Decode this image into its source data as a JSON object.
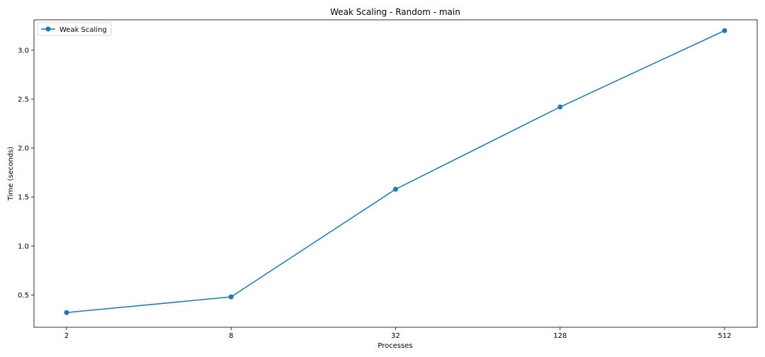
{
  "chart_data": {
    "type": "line",
    "title": "Weak Scaling - Random - main",
    "xlabel": "Processes",
    "ylabel": "Time (seconds)",
    "x_scale": "log2",
    "categories": [
      "2",
      "8",
      "32",
      "128",
      "512"
    ],
    "ylim": [
      0.17,
      3.31
    ],
    "yticks": [
      0.5,
      1.0,
      1.5,
      2.0,
      2.5,
      3.0
    ],
    "ytick_labels": [
      "0.5",
      "1.0",
      "1.5",
      "2.0",
      "2.5",
      "3.0"
    ],
    "grid": false,
    "legend_position": "top-left",
    "series": [
      {
        "name": "Weak Scaling",
        "color": "#1f77b4",
        "marker": "circle",
        "values": [
          0.32,
          0.48,
          1.58,
          2.42,
          3.2
        ]
      }
    ]
  }
}
